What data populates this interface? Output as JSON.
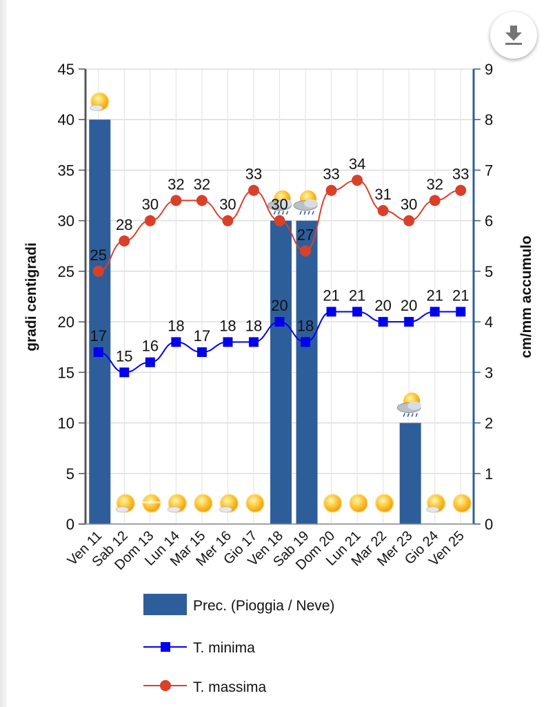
{
  "toolbar": {
    "download_icon": "download-icon"
  },
  "colors": {
    "precip_bar": "#2e5e9a",
    "t_min": "#0000ee",
    "t_max": "#d9402a",
    "left_axis": "#555555",
    "right_axis": "#2e5e9a",
    "grid": "#dddddd"
  },
  "chart_data": {
    "type": "bar+line",
    "categories": [
      "Ven 11",
      "Sab 12",
      "Dom 13",
      "Lun 14",
      "Mar 15",
      "Mer 16",
      "Gio 17",
      "Ven 18",
      "Sab 19",
      "Dom 20",
      "Lun 21",
      "Mar 22",
      "Mer 23",
      "Gio 24",
      "Ven 25"
    ],
    "series": [
      {
        "name": "Prec. (Pioggia / Neve)",
        "type": "bar",
        "axis": "right",
        "values": [
          8,
          0,
          0,
          0,
          0,
          0,
          0,
          6,
          6,
          0,
          0,
          0,
          2,
          0,
          0
        ]
      },
      {
        "name": "T. minima",
        "type": "line",
        "marker": "square",
        "axis": "left",
        "values": [
          17,
          15,
          16,
          18,
          17,
          18,
          18,
          20,
          18,
          21,
          21,
          20,
          20,
          21,
          21
        ]
      },
      {
        "name": "T. massima",
        "type": "line",
        "marker": "circle",
        "axis": "left",
        "values": [
          25,
          28,
          30,
          32,
          32,
          30,
          33,
          30,
          27,
          33,
          34,
          31,
          30,
          32,
          33
        ]
      }
    ],
    "weather_icons": [
      "sun-cloud",
      "sun-cloud",
      "sun-haze",
      "sun-cloud",
      "sun",
      "sun-cloud",
      "sun",
      "sun-cloud-rain",
      "sun-cloud-rain",
      "sun",
      "sun",
      "sun",
      "sun-cloud-rain",
      "sun-cloud",
      "sun"
    ],
    "ylabel": "gradi centigradi",
    "y2label": "cm/mm accumulo",
    "ylim": [
      0,
      45
    ],
    "y2lim": [
      0,
      9
    ],
    "yticks": [
      0,
      5,
      10,
      15,
      20,
      25,
      30,
      35,
      40,
      45
    ],
    "y2ticks": [
      0,
      1,
      2,
      3,
      4,
      5,
      6,
      7,
      8,
      9
    ],
    "grid": true,
    "legend_position": "bottom",
    "legend": [
      "Prec. (Pioggia / Neve)",
      "T. minima",
      "T. massima"
    ]
  }
}
